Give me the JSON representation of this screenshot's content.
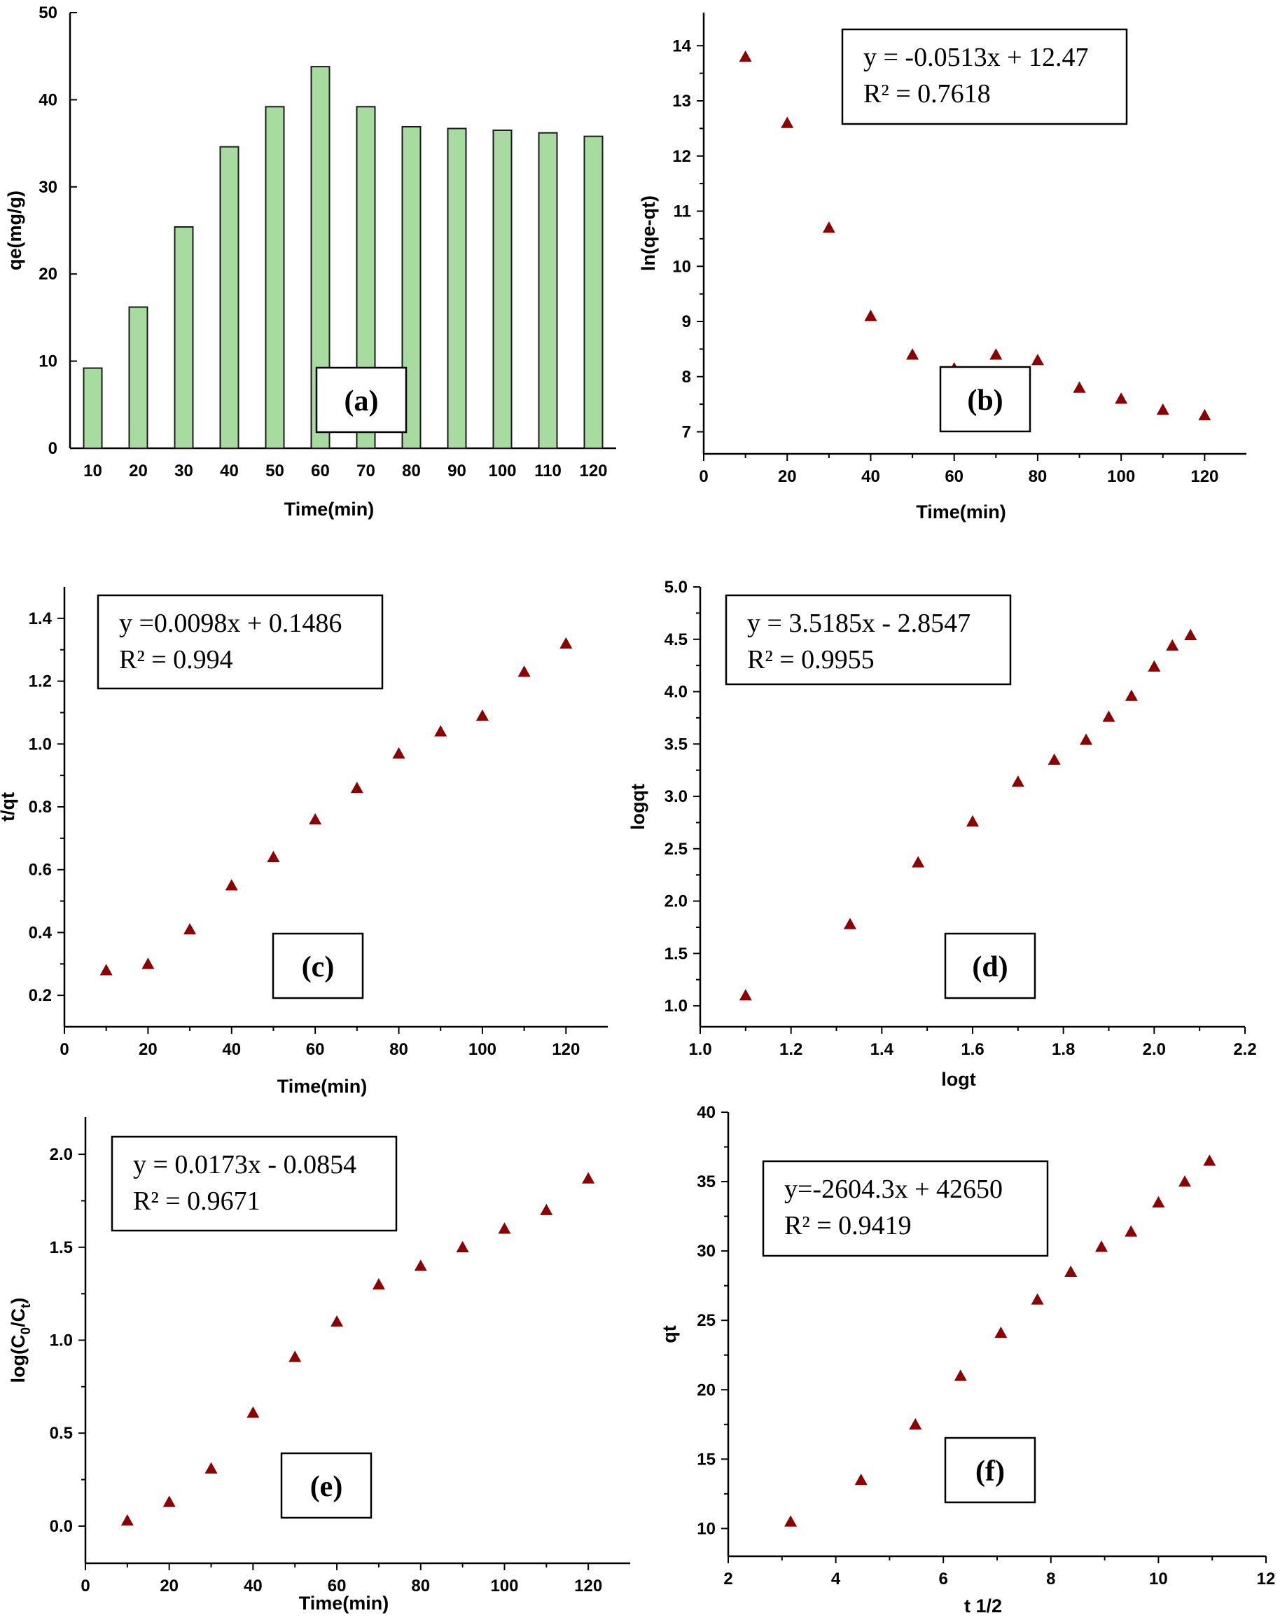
{
  "chart_data": [
    {
      "id": "a",
      "type": "bar",
      "panel_label": "(a)",
      "xlabel": "Time(min)",
      "ylabel": "qe(mg/g)",
      "categories": [
        "10",
        "20",
        "30",
        "40",
        "50",
        "60",
        "70",
        "80",
        "90",
        "100",
        "110",
        "120"
      ],
      "values": [
        9.2,
        16.2,
        25.4,
        34.6,
        39.2,
        43.8,
        39.2,
        36.9,
        36.7,
        36.5,
        36.2,
        35.8
      ],
      "ylim": [
        0,
        50
      ],
      "yticks": [
        "0",
        "10",
        "20",
        "30",
        "40",
        "50"
      ],
      "colors": {
        "bar": "#a8dba0"
      }
    },
    {
      "id": "b",
      "type": "scatter",
      "panel_label": "(b)",
      "xlabel": "Time(min)",
      "ylabel": "ln(qe-qt)",
      "x": [
        10,
        20,
        30,
        40,
        50,
        60,
        70,
        80,
        90,
        100,
        110,
        120
      ],
      "y": [
        13.8,
        12.6,
        10.7,
        9.1,
        8.4,
        8.15,
        8.4,
        8.3,
        7.8,
        7.6,
        7.4,
        7.3
      ],
      "xlim": [
        0,
        130
      ],
      "ylim": [
        6.6,
        14.6
      ],
      "xticks": [
        "0",
        "20",
        "40",
        "60",
        "80",
        "100",
        "120"
      ],
      "yticks": [
        "7",
        "8",
        "9",
        "10",
        "11",
        "12",
        "13",
        "14"
      ],
      "equation": "y = -0.0513x + 12.47",
      "r2": "R² = 0.7618"
    },
    {
      "id": "c",
      "type": "scatter",
      "panel_label": "(c)",
      "xlabel": "Time(min)",
      "ylabel": "t/qt",
      "x": [
        10,
        20,
        30,
        40,
        50,
        60,
        70,
        80,
        90,
        100,
        110,
        120
      ],
      "y": [
        0.28,
        0.3,
        0.41,
        0.55,
        0.64,
        0.76,
        0.86,
        0.97,
        1.04,
        1.09,
        1.23,
        1.32
      ],
      "xlim": [
        0,
        130
      ],
      "ylim": [
        0.1,
        1.5
      ],
      "xticks": [
        "0",
        "20",
        "40",
        "60",
        "80",
        "100",
        "120"
      ],
      "yticks": [
        "0.2",
        "0.4",
        "0.6",
        "0.8",
        "1.0",
        "1.2",
        "1.4"
      ],
      "equation": "y =0.0098x + 0.1486",
      "r2": "R² = 0.994"
    },
    {
      "id": "d",
      "type": "scatter",
      "panel_label": "(d)",
      "xlabel": "logt",
      "ylabel": "logqt",
      "x": [
        1.1,
        1.33,
        1.48,
        1.6,
        1.7,
        1.78,
        1.85,
        1.9,
        1.95,
        2.0,
        2.04,
        2.08
      ],
      "y": [
        1.1,
        1.78,
        2.37,
        2.76,
        3.14,
        3.35,
        3.54,
        3.76,
        3.96,
        4.24,
        4.44,
        4.54
      ],
      "xlim": [
        1.0,
        2.2
      ],
      "ylim": [
        0.8,
        5.0
      ],
      "xticks": [
        "1.0",
        "1.2",
        "1.4",
        "1.6",
        "1.8",
        "2.0",
        "2.2"
      ],
      "yticks": [
        "1.0",
        "1.5",
        "2.0",
        "2.5",
        "3.0",
        "3.5",
        "4.0",
        "4.5",
        "5.0"
      ],
      "equation": "y = 3.5185x - 2.8547",
      "r2": "R² = 0.9955"
    },
    {
      "id": "e",
      "type": "scatter",
      "panel_label": "(e)",
      "xlabel": "Time(min)",
      "ylabel": "log(C0/Ct)",
      "ylabel_main": "log(C",
      "ylabel_sub1": "0",
      "ylabel_mid": "/C",
      "ylabel_sub2": "t",
      "ylabel_end": ")",
      "x": [
        10,
        20,
        30,
        40,
        50,
        60,
        70,
        80,
        90,
        100,
        110,
        120
      ],
      "y": [
        0.03,
        0.13,
        0.31,
        0.61,
        0.91,
        1.1,
        1.3,
        1.4,
        1.5,
        1.6,
        1.7,
        1.87
      ],
      "xlim": [
        0,
        130
      ],
      "ylim": [
        -0.2,
        2.2
      ],
      "xticks": [
        "0",
        "20",
        "40",
        "60",
        "80",
        "100",
        "120"
      ],
      "yticks": [
        "0.0",
        "0.5",
        "1.0",
        "1.5",
        "2.0"
      ],
      "equation": "y = 0.0173x - 0.0854",
      "r2": "R² = 0.9671"
    },
    {
      "id": "f",
      "type": "scatter",
      "panel_label": "(f)",
      "xlabel": "t 1/2",
      "ylabel": "qt",
      "x": [
        3.16,
        4.47,
        5.48,
        6.32,
        7.07,
        7.75,
        8.37,
        8.94,
        9.49,
        10.0,
        10.49,
        10.95
      ],
      "y": [
        10.5,
        13.5,
        17.5,
        21.0,
        24.1,
        26.5,
        28.5,
        30.3,
        31.4,
        33.5,
        35.0,
        36.5
      ],
      "xlim": [
        2,
        12
      ],
      "ylim": [
        8,
        40
      ],
      "xticks": [
        "2",
        "4",
        "6",
        "8",
        "10",
        "12"
      ],
      "yticks": [
        "10",
        "15",
        "20",
        "25",
        "30",
        "35",
        "40"
      ],
      "equation": "y=-2604.3x + 42650",
      "r2": "R² = 0.9419"
    }
  ],
  "colors": {
    "marker": "#8b0000",
    "bar": "#a8dba0",
    "axis": "#000000"
  }
}
